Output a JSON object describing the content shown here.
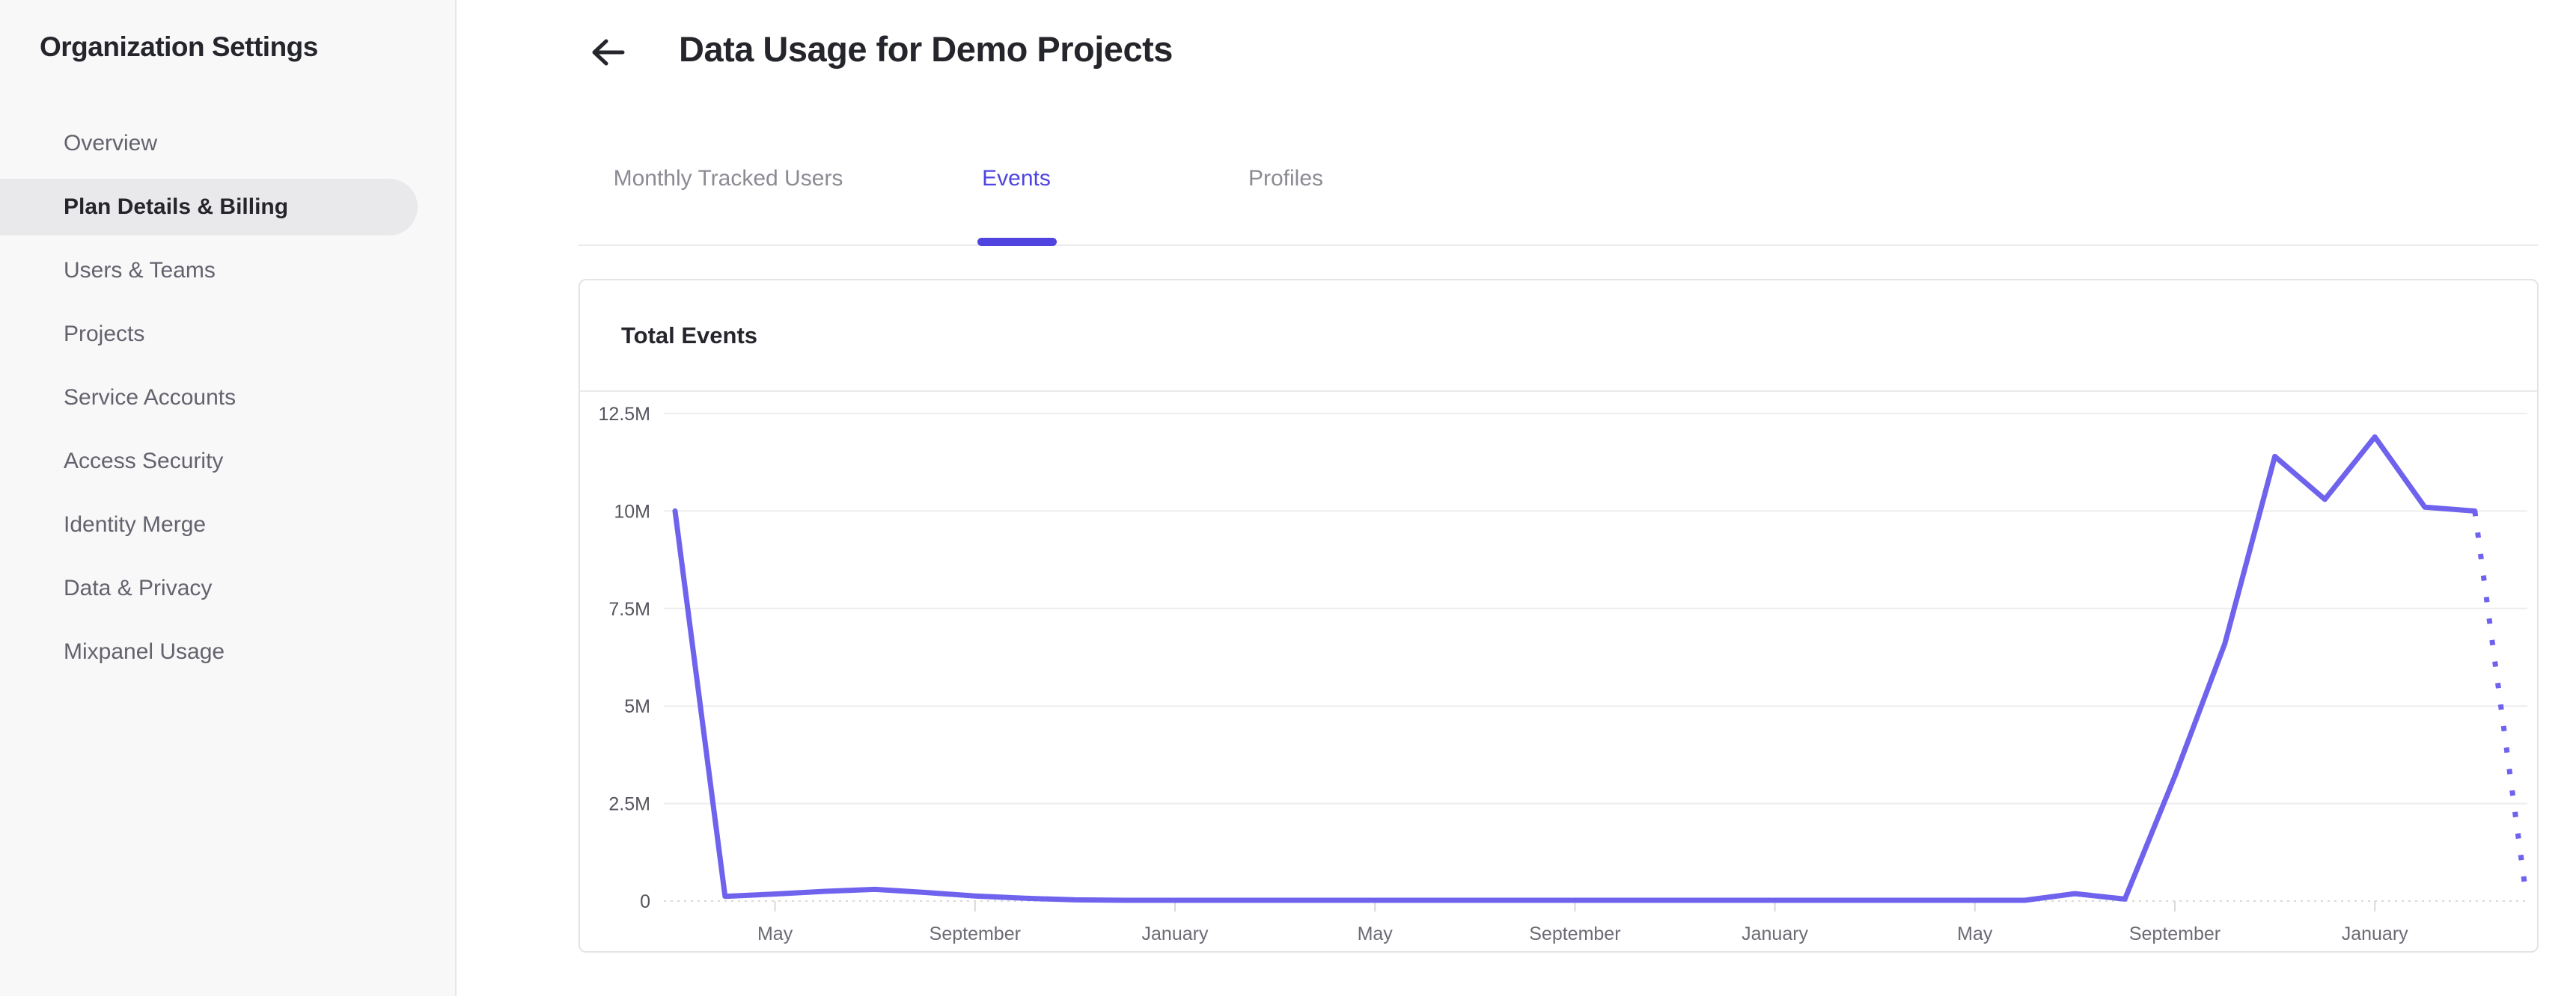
{
  "sidebar": {
    "title": "Organization Settings",
    "items": [
      {
        "label": "Overview",
        "active": false
      },
      {
        "label": "Plan Details & Billing",
        "active": true
      },
      {
        "label": "Users & Teams",
        "active": false
      },
      {
        "label": "Projects",
        "active": false
      },
      {
        "label": "Service Accounts",
        "active": false
      },
      {
        "label": "Access Security",
        "active": false
      },
      {
        "label": "Identity Merge",
        "active": false
      },
      {
        "label": "Data & Privacy",
        "active": false
      },
      {
        "label": "Mixpanel Usage",
        "active": false
      }
    ]
  },
  "header": {
    "back_icon": "arrow-left",
    "title": "Data Usage for Demo Projects"
  },
  "tabs": [
    {
      "label": "Monthly Tracked Users",
      "active": false
    },
    {
      "label": "Events",
      "active": true
    },
    {
      "label": "Profiles",
      "active": false
    }
  ],
  "card": {
    "title": "Total Events"
  },
  "colors": {
    "accent_purple": "#4f44e0",
    "line_purple": "#6f63ee",
    "gridline": "#ededee",
    "axis_dotted": "#d9d9db",
    "sidebar_bg": "#f8f8f9",
    "active_pill": "#e9e9eb",
    "text_dark": "#25252c",
    "text_gray": "#63636d"
  },
  "chart_data": {
    "type": "line",
    "title": "Total Events",
    "xlabel": "",
    "ylabel": "",
    "ylim": [
      0,
      12.5
    ],
    "grid": true,
    "legend": "none",
    "y_tick_values": [
      0,
      2.5,
      5,
      7.5,
      10,
      12.5
    ],
    "y_tick_labels": [
      "0",
      "2.5M",
      "5M",
      "7.5M",
      "10M",
      "12.5M"
    ],
    "x_tick_indices": [
      2,
      6,
      10,
      14,
      18,
      22,
      26,
      30,
      34
    ],
    "x_tick_labels": [
      "May",
      "September",
      "January",
      "May",
      "September",
      "January",
      "May",
      "September",
      "January"
    ],
    "series": [
      {
        "name": "Total Events",
        "unit": "millions",
        "values_millions": [
          10,
          0.12,
          0.18,
          0.25,
          0.3,
          0.22,
          0.13,
          0.07,
          0.03,
          0.02,
          0.02,
          0.02,
          0.02,
          0.02,
          0.02,
          0.02,
          0.02,
          0.02,
          0.02,
          0.02,
          0.02,
          0.02,
          0.02,
          0.02,
          0.02,
          0.02,
          0.02,
          0.02,
          0.19,
          0.05,
          3.2,
          6.6,
          11.4,
          10.3,
          11.9,
          10.1,
          10.0,
          0.4
        ],
        "solid_until_index": 36,
        "last_segment_style": "dotted"
      }
    ]
  }
}
